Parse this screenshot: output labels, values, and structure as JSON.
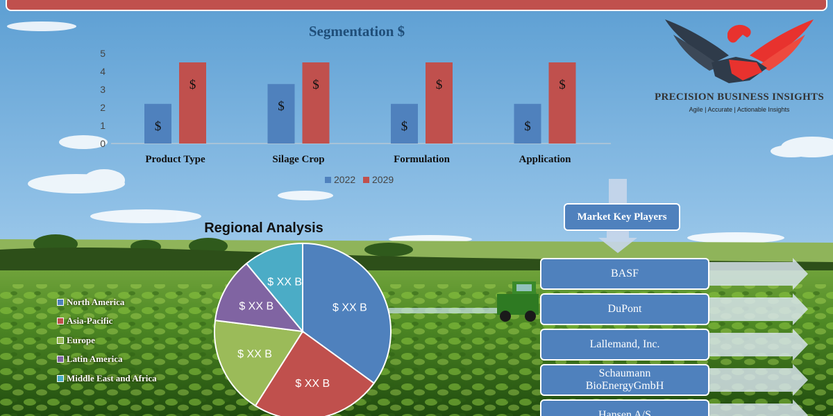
{
  "banner": {
    "color": "#c0504d"
  },
  "logo": {
    "name": "PRECISION BUSINESS INSIGHTS",
    "tagline": "Agile | Accurate | Actionable Insights",
    "icon": "eagle-handshake-logo"
  },
  "chart_data": [
    {
      "type": "bar",
      "title": "Segmentation $",
      "categories": [
        "Product Type",
        "Silage Crop",
        "Formulation",
        "Application"
      ],
      "series": [
        {
          "name": "2022",
          "color": "#4f81bd",
          "values": [
            2.2,
            3.3,
            2.2,
            2.2
          ]
        },
        {
          "name": "2029",
          "color": "#c0504d",
          "values": [
            4.5,
            4.5,
            4.5,
            4.5
          ]
        }
      ],
      "data_label": "$",
      "ylim": [
        0,
        5
      ],
      "yticks": [
        "0",
        "1",
        "2",
        "3",
        "4",
        "5"
      ],
      "grid": false,
      "legend": "bottom"
    },
    {
      "type": "pie",
      "title": "Regional Analysis",
      "slices": [
        {
          "name": "North America",
          "value": 35,
          "label": "$ XX B",
          "color": "#4f81bd"
        },
        {
          "name": "Asia-Pacific",
          "value": 24,
          "label": "$ XX B",
          "color": "#c0504d"
        },
        {
          "name": "Europe",
          "value": 18,
          "label": "$ XX B",
          "color": "#9bbb59"
        },
        {
          "name": "Latin America",
          "value": 12,
          "label": "$ XX B",
          "color": "#8064a2"
        },
        {
          "name": "Middle East and Africa",
          "value": 11,
          "label": "$ XX B",
          "color": "#4bacc6"
        }
      ],
      "legend": "left"
    }
  ],
  "players": {
    "heading": "Market Key Players",
    "items": [
      "BASF",
      "DuPont",
      "Lallemand, Inc.",
      "Schaumann BioEnergyGmbH",
      "Hansen A/S"
    ]
  }
}
